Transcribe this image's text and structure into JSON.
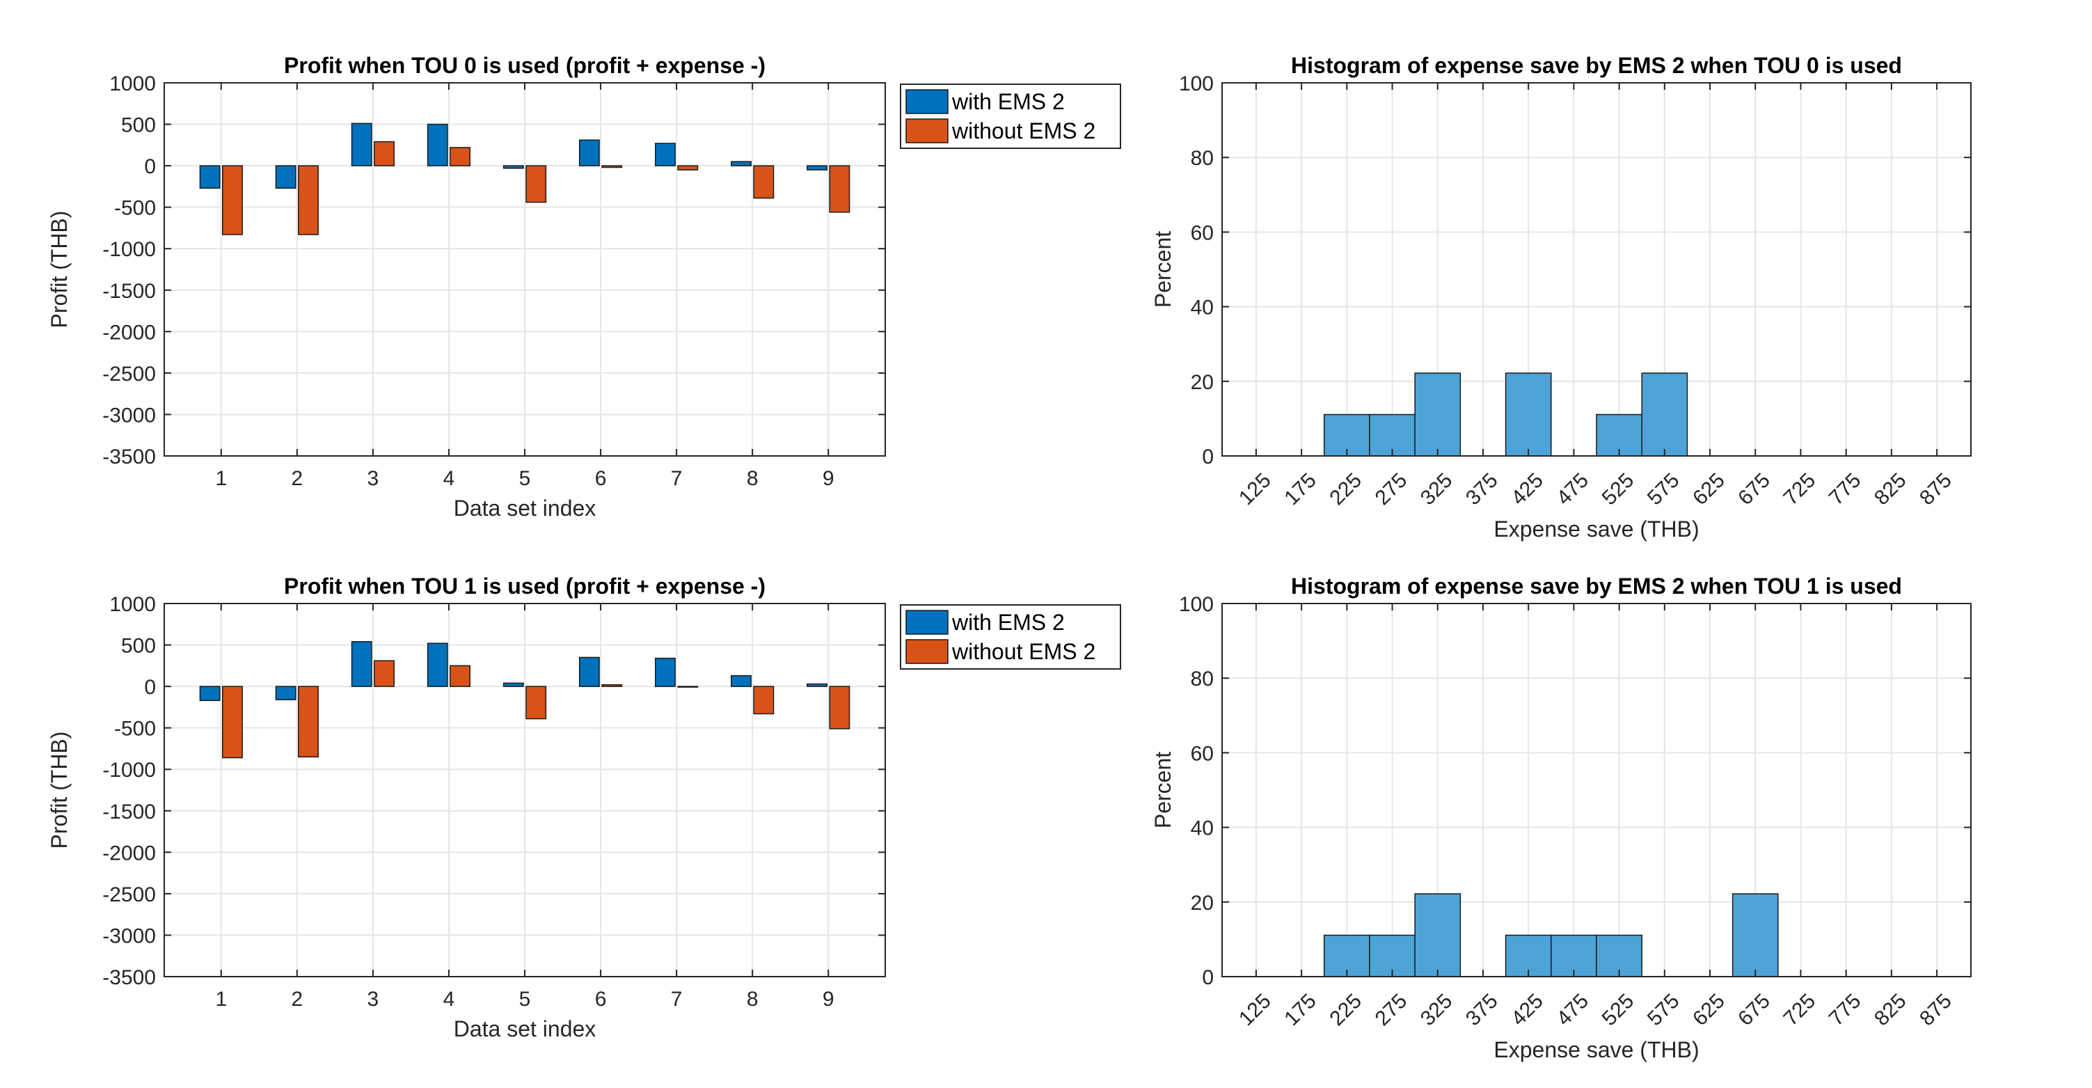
{
  "colors": {
    "with": "#0072BD",
    "without": "#D95319",
    "hist": "#4DA3D7",
    "grid": "#E6E6E6",
    "axis": "#262626"
  },
  "chart_data": [
    {
      "type": "bar",
      "title": "Profit when TOU 0 is used (profit + expense -)",
      "xlabel": "Data set index",
      "ylabel": "Profit (THB)",
      "ylim": [
        -3500,
        1000
      ],
      "yticks": [
        "1000",
        "500",
        "0",
        "-500",
        "-1000",
        "-1500",
        "-2000",
        "-2500",
        "-3000",
        "-3500"
      ],
      "categories": [
        "1",
        "2",
        "3",
        "4",
        "5",
        "6",
        "7",
        "8",
        "9"
      ],
      "series": [
        {
          "name": "with EMS 2",
          "values": [
            -270,
            -270,
            510,
            500,
            -30,
            310,
            270,
            50,
            -50
          ]
        },
        {
          "name": "without EMS 2",
          "values": [
            -830,
            -830,
            290,
            220,
            -440,
            -20,
            -50,
            -390,
            -560
          ]
        }
      ],
      "legend": "top-right",
      "grid": true
    },
    {
      "type": "bar",
      "title": "Histogram of expense save by EMS 2 when TOU 0 is used",
      "xlabel": "Expense save (THB)",
      "ylabel": "Percent",
      "ylim": [
        0,
        100
      ],
      "yticks": [
        "0",
        "20",
        "40",
        "60",
        "80",
        "100"
      ],
      "categories": [
        "125",
        "175",
        "225",
        "275",
        "325",
        "375",
        "425",
        "475",
        "525",
        "575",
        "625",
        "675",
        "725",
        "775",
        "825",
        "875"
      ],
      "values": [
        0,
        0,
        11.1,
        11.1,
        22.2,
        0,
        22.2,
        0,
        11.1,
        22.2,
        0,
        0,
        0,
        0,
        0,
        0
      ],
      "grid": true
    },
    {
      "type": "bar",
      "title": "Profit when TOU 1 is used (profit + expense -)",
      "xlabel": "Data set index",
      "ylabel": "Profit (THB)",
      "ylim": [
        -3500,
        1000
      ],
      "yticks": [
        "1000",
        "500",
        "0",
        "-500",
        "-1000",
        "-1500",
        "-2000",
        "-2500",
        "-3000",
        "-3500"
      ],
      "categories": [
        "1",
        "2",
        "3",
        "4",
        "5",
        "6",
        "7",
        "8",
        "9"
      ],
      "series": [
        {
          "name": "with EMS 2",
          "values": [
            -170,
            -160,
            540,
            520,
            40,
            350,
            340,
            130,
            30
          ]
        },
        {
          "name": "without EMS 2",
          "values": [
            -860,
            -850,
            310,
            250,
            -390,
            20,
            0,
            -330,
            -510
          ]
        }
      ],
      "legend": "top-right",
      "grid": true
    },
    {
      "type": "bar",
      "title": "Histogram of expense save by EMS 2 when TOU 1 is used",
      "xlabel": "Expense save (THB)",
      "ylabel": "Percent",
      "ylim": [
        0,
        100
      ],
      "yticks": [
        "0",
        "20",
        "40",
        "60",
        "80",
        "100"
      ],
      "categories": [
        "125",
        "175",
        "225",
        "275",
        "325",
        "375",
        "425",
        "475",
        "525",
        "575",
        "625",
        "675",
        "725",
        "775",
        "825",
        "875"
      ],
      "values": [
        0,
        0,
        11.1,
        11.1,
        22.2,
        0,
        11.1,
        11.1,
        11.1,
        0,
        0,
        22.2,
        0,
        0,
        0,
        0
      ],
      "grid": true
    }
  ]
}
